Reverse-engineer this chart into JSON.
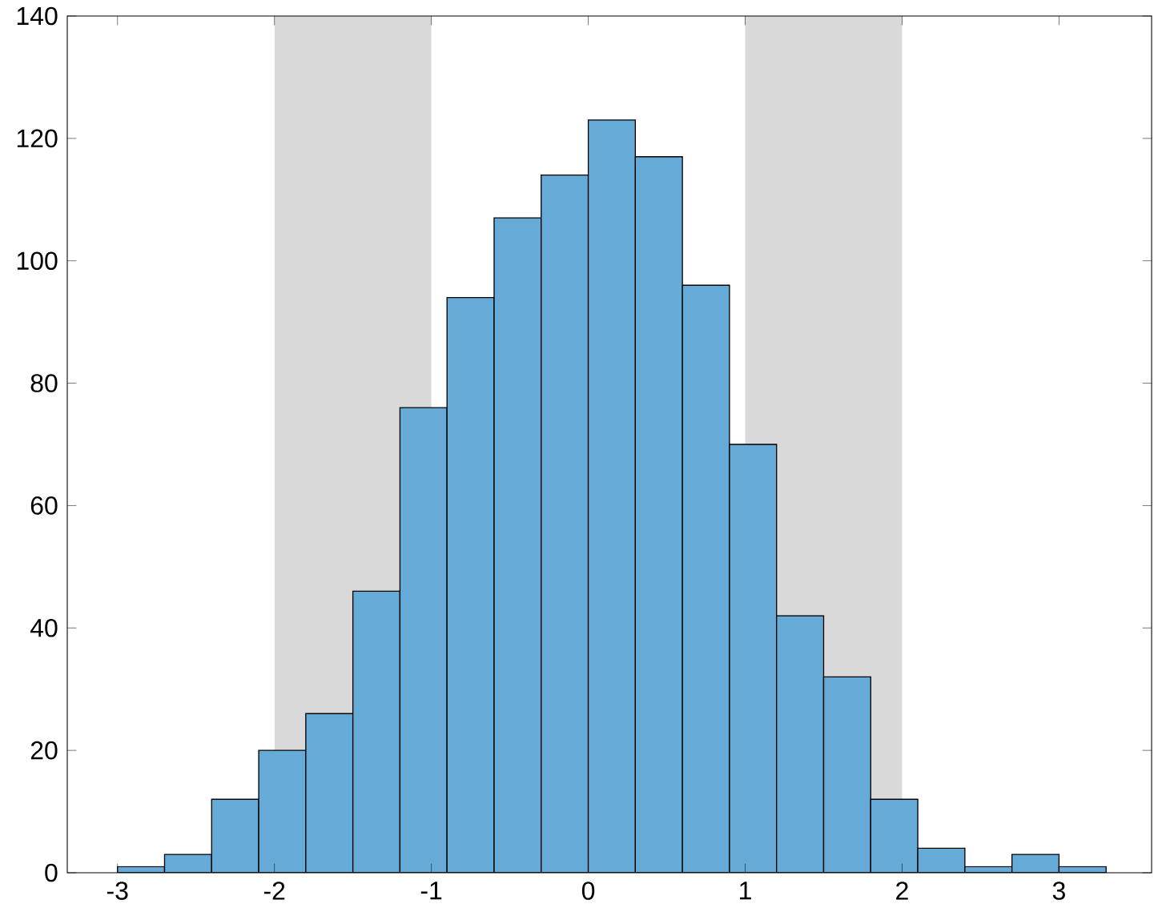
{
  "chart_data": {
    "type": "histogram",
    "bins": [
      -3.0,
      -2.7,
      -2.4,
      -2.1,
      -1.8,
      -1.5,
      -1.2,
      -0.9,
      -0.6,
      -0.3,
      0.0,
      0.3,
      0.6,
      0.9,
      1.2,
      1.5,
      1.8,
      2.1,
      2.4,
      2.7,
      3.0,
      3.3
    ],
    "values": [
      1,
      3,
      12,
      20,
      26,
      46,
      76,
      94,
      107,
      114,
      123,
      117,
      96,
      70,
      42,
      32,
      12,
      4,
      1,
      3,
      1
    ],
    "color": "#66aad7",
    "xlim": [
      -3.32,
      3.59
    ],
    "ylim": [
      0,
      140
    ],
    "xticks": [
      -3,
      -2,
      -1,
      0,
      1,
      2,
      3
    ],
    "yticks": [
      0,
      20,
      40,
      60,
      80,
      100,
      120,
      140
    ],
    "bands": [
      {
        "axis": "x",
        "from": -2,
        "to": -1,
        "color": "#d9d9d9"
      },
      {
        "axis": "x",
        "from": 1,
        "to": 2,
        "color": "#d9d9d9"
      }
    ]
  }
}
